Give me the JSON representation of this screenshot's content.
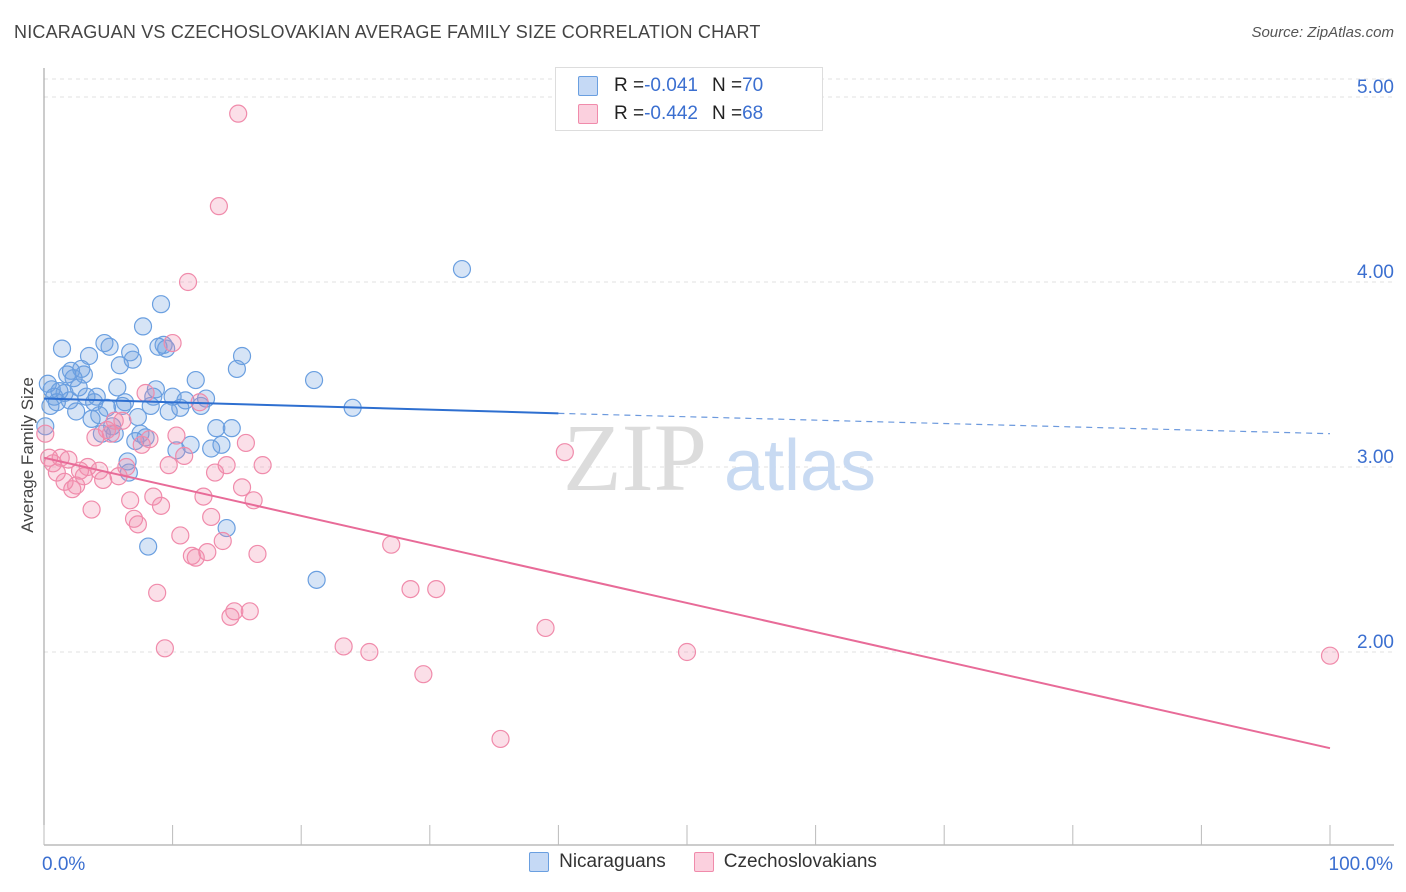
{
  "title": "NICARAGUAN VS CZECHOSLOVAKIAN AVERAGE FAMILY SIZE CORRELATION CHART",
  "source": "Source: ZipAtlas.com",
  "watermark": {
    "zip": "ZIP",
    "atlas": "atlas"
  },
  "legend_top": [
    {
      "r_label": "R = ",
      "r_value": "-0.041",
      "n_label": "N = ",
      "n_value": "70"
    },
    {
      "r_label": "R = ",
      "r_value": "-0.442",
      "n_label": "N = ",
      "n_value": "68"
    }
  ],
  "legend_bottom": [
    "Nicaraguans",
    "Czechoslovakians"
  ],
  "chart_data": {
    "type": "scatter",
    "xlabel": "",
    "ylabel": "Average Family Size",
    "xlim": [
      0,
      100
    ],
    "ylim": [
      1.0,
      5.2
    ],
    "x_tick_labels": [
      "0.0%",
      "100.0%"
    ],
    "y_ticks": [
      2.0,
      3.0,
      4.0,
      5.0
    ],
    "y_tick_labels": [
      "2.00",
      "3.00",
      "4.00",
      "5.00"
    ],
    "grid": "horizontal dashed",
    "legend_position": "top-center",
    "colors": {
      "nicaraguans": "#6a9fe0",
      "czechoslovakians": "#f08bab",
      "blue_line": "#2e6fd0",
      "pink_line": "#e86b98",
      "axis_text": "#3b6fd0"
    },
    "series": [
      {
        "name": "Nicaraguans",
        "trend": {
          "x0": 0,
          "y0": 3.37,
          "x1": 40,
          "y1": 3.29,
          "dashed_to_x": 100,
          "dashed_to_y": 3.18
        },
        "points": [
          [
            0.1,
            3.22
          ],
          [
            0.3,
            3.45
          ],
          [
            0.5,
            3.33
          ],
          [
            0.6,
            3.42
          ],
          [
            0.8,
            3.38
          ],
          [
            1.0,
            3.35
          ],
          [
            1.2,
            3.41
          ],
          [
            1.4,
            3.64
          ],
          [
            1.6,
            3.4
          ],
          [
            1.8,
            3.5
          ],
          [
            2.0,
            3.36
          ],
          [
            2.1,
            3.52
          ],
          [
            2.3,
            3.48
          ],
          [
            2.5,
            3.3
          ],
          [
            2.7,
            3.43
          ],
          [
            2.9,
            3.53
          ],
          [
            3.1,
            3.5
          ],
          [
            3.3,
            3.38
          ],
          [
            3.5,
            3.6
          ],
          [
            3.7,
            3.26
          ],
          [
            3.9,
            3.35
          ],
          [
            4.1,
            3.38
          ],
          [
            4.3,
            3.28
          ],
          [
            4.5,
            3.18
          ],
          [
            4.7,
            3.67
          ],
          [
            4.9,
            3.32
          ],
          [
            5.1,
            3.65
          ],
          [
            5.3,
            3.22
          ],
          [
            5.5,
            3.18
          ],
          [
            5.7,
            3.43
          ],
          [
            5.9,
            3.55
          ],
          [
            6.1,
            3.33
          ],
          [
            6.3,
            3.35
          ],
          [
            6.5,
            3.03
          ],
          [
            6.7,
            3.62
          ],
          [
            6.9,
            3.58
          ],
          [
            7.1,
            3.14
          ],
          [
            7.3,
            3.27
          ],
          [
            7.5,
            3.18
          ],
          [
            7.7,
            3.76
          ],
          [
            7.9,
            3.16
          ],
          [
            8.1,
            2.57
          ],
          [
            8.3,
            3.33
          ],
          [
            8.5,
            3.38
          ],
          [
            8.7,
            3.42
          ],
          [
            8.9,
            3.65
          ],
          [
            9.1,
            3.88
          ],
          [
            9.3,
            3.66
          ],
          [
            9.5,
            3.64
          ],
          [
            9.7,
            3.3
          ],
          [
            10.0,
            3.38
          ],
          [
            10.3,
            3.09
          ],
          [
            10.6,
            3.32
          ],
          [
            11.0,
            3.36
          ],
          [
            11.4,
            3.12
          ],
          [
            11.8,
            3.47
          ],
          [
            12.2,
            3.33
          ],
          [
            12.6,
            3.37
          ],
          [
            13.0,
            3.1
          ],
          [
            13.4,
            3.21
          ],
          [
            13.8,
            3.12
          ],
          [
            14.2,
            2.67
          ],
          [
            14.6,
            3.21
          ],
          [
            15.0,
            3.53
          ],
          [
            15.4,
            3.6
          ],
          [
            6.6,
            2.97
          ],
          [
            21.0,
            3.47
          ],
          [
            21.2,
            2.39
          ],
          [
            24.0,
            3.32
          ],
          [
            32.5,
            4.07
          ]
        ]
      },
      {
        "name": "Czechoslovakians",
        "trend": {
          "x0": 0,
          "y0": 3.05,
          "x1": 100,
          "y1": 1.48
        },
        "points": [
          [
            0.1,
            3.18
          ],
          [
            0.4,
            3.05
          ],
          [
            0.7,
            3.02
          ],
          [
            1.0,
            2.97
          ],
          [
            1.3,
            3.05
          ],
          [
            1.6,
            2.92
          ],
          [
            1.9,
            3.04
          ],
          [
            2.2,
            2.88
          ],
          [
            2.5,
            2.9
          ],
          [
            2.8,
            2.98
          ],
          [
            3.1,
            2.95
          ],
          [
            3.4,
            3.0
          ],
          [
            3.7,
            2.77
          ],
          [
            4.0,
            3.16
          ],
          [
            4.3,
            2.98
          ],
          [
            4.6,
            2.93
          ],
          [
            4.9,
            3.2
          ],
          [
            5.2,
            3.18
          ],
          [
            5.5,
            3.25
          ],
          [
            5.8,
            2.95
          ],
          [
            6.1,
            3.25
          ],
          [
            6.4,
            3.0
          ],
          [
            6.7,
            2.82
          ],
          [
            7.0,
            2.72
          ],
          [
            7.3,
            2.69
          ],
          [
            7.6,
            3.12
          ],
          [
            7.9,
            3.4
          ],
          [
            8.2,
            3.15
          ],
          [
            8.5,
            2.84
          ],
          [
            8.8,
            2.32
          ],
          [
            9.1,
            2.79
          ],
          [
            9.4,
            2.02
          ],
          [
            9.7,
            3.01
          ],
          [
            10.0,
            3.67
          ],
          [
            10.3,
            3.17
          ],
          [
            10.6,
            2.63
          ],
          [
            10.9,
            3.06
          ],
          [
            11.2,
            4.0
          ],
          [
            11.5,
            2.52
          ],
          [
            11.8,
            2.51
          ],
          [
            12.1,
            3.35
          ],
          [
            12.4,
            2.84
          ],
          [
            12.7,
            2.54
          ],
          [
            13.0,
            2.73
          ],
          [
            13.3,
            2.97
          ],
          [
            13.6,
            4.41
          ],
          [
            13.9,
            2.6
          ],
          [
            14.2,
            3.01
          ],
          [
            14.5,
            2.19
          ],
          [
            14.8,
            2.22
          ],
          [
            15.1,
            4.91
          ],
          [
            15.4,
            2.89
          ],
          [
            15.7,
            3.13
          ],
          [
            16.0,
            2.22
          ],
          [
            16.3,
            2.82
          ],
          [
            16.6,
            2.53
          ],
          [
            17.0,
            3.01
          ],
          [
            23.3,
            2.03
          ],
          [
            25.3,
            2.0
          ],
          [
            27.0,
            2.58
          ],
          [
            28.5,
            2.34
          ],
          [
            29.5,
            1.88
          ],
          [
            30.5,
            2.34
          ],
          [
            35.5,
            1.53
          ],
          [
            39.0,
            2.13
          ],
          [
            40.5,
            3.08
          ],
          [
            50.0,
            2.0
          ],
          [
            100.0,
            1.98
          ]
        ]
      }
    ]
  }
}
